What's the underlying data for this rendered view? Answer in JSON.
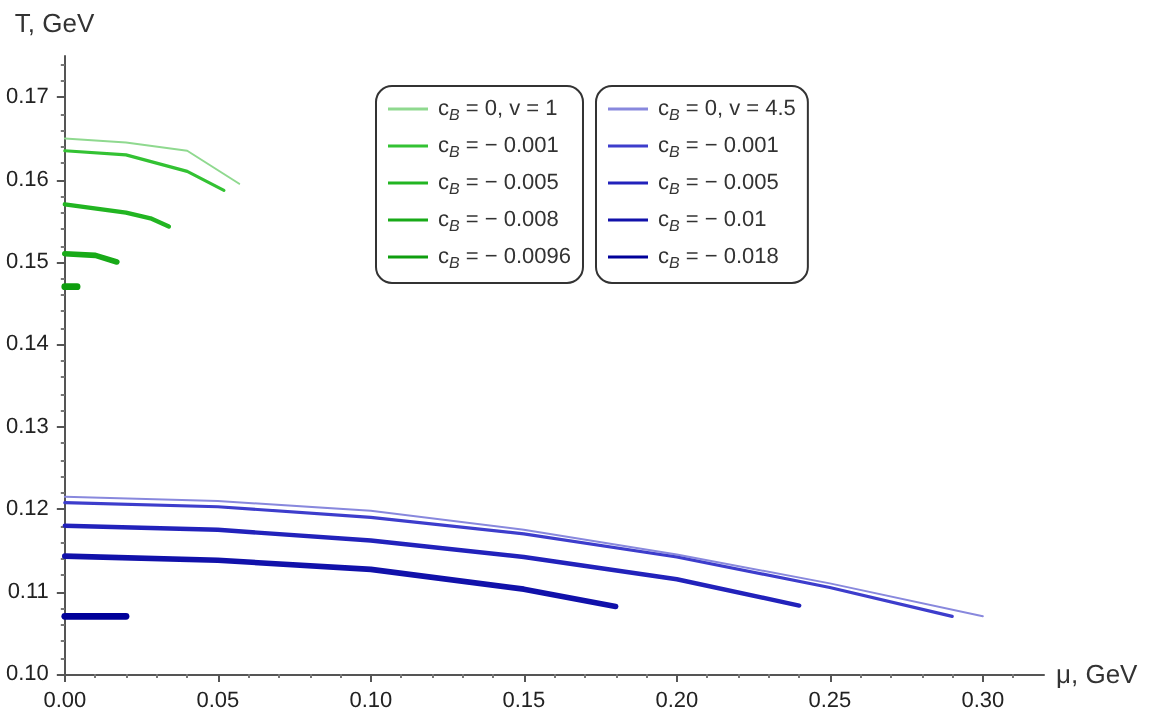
{
  "chart_data": {
    "type": "line",
    "xlabel": "μ, GeV",
    "ylabel": "T, GeV",
    "xlim": [
      0,
      0.32
    ],
    "ylim": [
      0.1,
      0.175
    ],
    "xticks": [
      {
        "value": 0,
        "label": "0.00"
      },
      {
        "value": 0.05,
        "label": "0.05"
      },
      {
        "value": 0.1,
        "label": "0.10"
      },
      {
        "value": 0.15,
        "label": "0.15"
      },
      {
        "value": 0.2,
        "label": "0.20"
      },
      {
        "value": 0.25,
        "label": "0.25"
      },
      {
        "value": 0.3,
        "label": "0.30"
      }
    ],
    "yticks": [
      {
        "value": 0.1,
        "label": "0.10"
      },
      {
        "value": 0.11,
        "label": "0.11"
      },
      {
        "value": 0.12,
        "label": "0.12"
      },
      {
        "value": 0.13,
        "label": "0.13"
      },
      {
        "value": 0.14,
        "label": "0.14"
      },
      {
        "value": 0.15,
        "label": "0.15"
      },
      {
        "value": 0.16,
        "label": "0.16"
      },
      {
        "value": 0.17,
        "label": "0.17"
      }
    ],
    "grid": false,
    "legend": "top",
    "marker": "none",
    "line_style": "solid",
    "series": [
      {
        "name": "c$_{B}$ = 0, v = 1",
        "color": "#8fd98f",
        "x": [
          0,
          0.02,
          0.04,
          0.057
        ],
        "values": [
          0.165,
          0.1645,
          0.1635,
          0.1595
        ]
      },
      {
        "name": "c$_{B}$ = − 0.001",
        "color": "#33c233",
        "x": [
          0,
          0.02,
          0.04,
          0.052
        ],
        "values": [
          0.1635,
          0.163,
          0.161,
          0.1587
        ]
      },
      {
        "name": "c$_{B}$ = − 0.005",
        "color": "#22b522",
        "x": [
          0,
          0.02,
          0.028,
          0.034
        ],
        "values": [
          0.157,
          0.156,
          0.1553,
          0.1543
        ]
      },
      {
        "name": "c$_{B}$ = − 0.008",
        "color": "#18aa18",
        "x": [
          0,
          0.01,
          0.017
        ],
        "values": [
          0.151,
          0.1508,
          0.15
        ]
      },
      {
        "name": "c$_{B}$ = − 0.0096",
        "color": "#0e9e0e",
        "x": [
          0,
          0.004
        ],
        "values": [
          0.147,
          0.147
        ]
      },
      {
        "name": "c$_{B}$ = 0, v = 4.5",
        "color": "#8888dd",
        "x": [
          0,
          0.05,
          0.1,
          0.15,
          0.2,
          0.25,
          0.3
        ],
        "values": [
          0.1215,
          0.121,
          0.1198,
          0.1175,
          0.1145,
          0.111,
          0.107
        ]
      },
      {
        "name": "c$_{B}$ = − 0.001",
        "color": "#3d3dcc",
        "x": [
          0,
          0.05,
          0.1,
          0.15,
          0.2,
          0.25,
          0.29
        ],
        "values": [
          0.1208,
          0.1203,
          0.119,
          0.117,
          0.1142,
          0.1105,
          0.107
        ]
      },
      {
        "name": "c$_{B}$ = − 0.005",
        "color": "#2222bb",
        "x": [
          0,
          0.05,
          0.1,
          0.15,
          0.2,
          0.24
        ],
        "values": [
          0.118,
          0.1175,
          0.1162,
          0.1142,
          0.1115,
          0.1083
        ]
      },
      {
        "name": "c$_{B}$ = − 0.01",
        "color": "#1111aa",
        "x": [
          0,
          0.05,
          0.1,
          0.15,
          0.18
        ],
        "values": [
          0.1143,
          0.1138,
          0.1127,
          0.1103,
          0.1082
        ]
      },
      {
        "name": "c$_{B}$ = − 0.018",
        "color": "#000099",
        "x": [
          0,
          0.02
        ],
        "values": [
          0.107,
          0.107
        ]
      }
    ]
  }
}
